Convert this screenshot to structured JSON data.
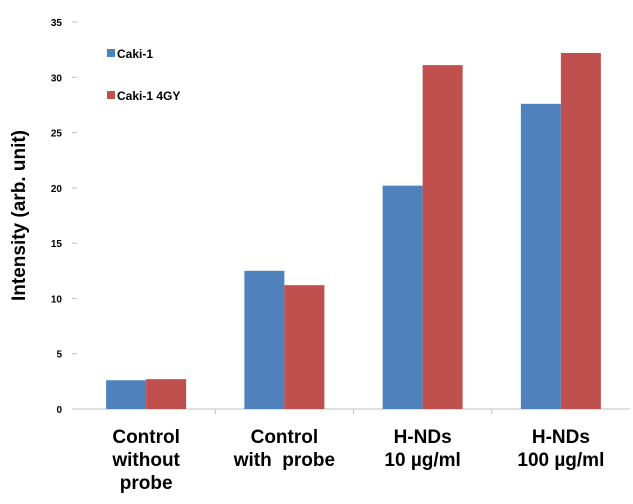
{
  "chart_data": {
    "type": "bar",
    "title": "",
    "xlabel": "",
    "ylabel": "Intensity (arb. unit)",
    "ylim": [
      0,
      35
    ],
    "yticks": [
      0,
      5,
      10,
      15,
      20,
      25,
      30,
      35
    ],
    "categories": [
      [
        "Control",
        "without",
        "probe"
      ],
      [
        "Control",
        "with  probe"
      ],
      [
        "H-NDs",
        "10 µg/ml"
      ],
      [
        "H-NDs",
        "100 µg/ml"
      ]
    ],
    "series": [
      {
        "name": "Caki-1",
        "color": "#4f81bd",
        "values": [
          2.6,
          12.5,
          20.2,
          27.6
        ]
      },
      {
        "name": "Caki-1 4GY",
        "color": "#c0504d",
        "values": [
          2.7,
          11.2,
          31.1,
          32.2
        ]
      }
    ],
    "legend_position": "top-left",
    "grid": false
  }
}
